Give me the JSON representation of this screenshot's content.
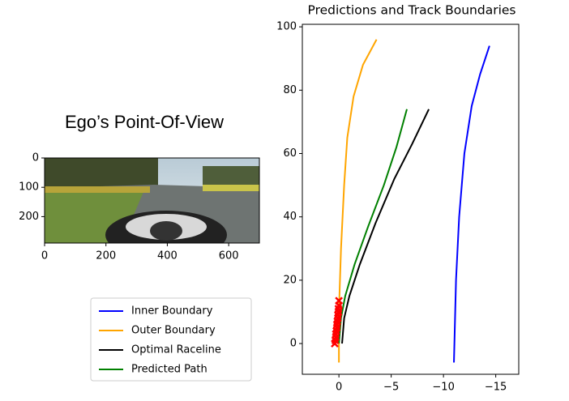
{
  "chart_data": [
    {
      "type": "image",
      "title": "Ego’s Point-Of-View",
      "xlim": [
        0,
        700
      ],
      "ylim": [
        290,
        0
      ],
      "xticks": [
        0,
        200,
        400,
        600
      ],
      "yticks": [
        0,
        100,
        200
      ]
    },
    {
      "type": "line",
      "title": "Predictions and Track Boundaries",
      "xlim": [
        3.5,
        -17.2
      ],
      "ylim": [
        -9.7,
        100.8
      ],
      "xticks": [
        0,
        {
          "value": -5,
          "label": "−5"
        },
        {
          "value": -10,
          "label": "−10"
        },
        {
          "value": -15,
          "label": "−15"
        }
      ],
      "yticks": [
        0,
        20,
        40,
        60,
        80,
        100
      ],
      "legend": "outside left",
      "series": [
        {
          "name": "Inner Boundary",
          "color": "#0000ff",
          "x": [
            -11,
            -11.2,
            -11.5,
            -12,
            -12.7,
            -13.5,
            -14.4
          ],
          "values": [
            -6,
            20,
            40,
            60,
            75,
            85,
            94
          ]
        },
        {
          "name": "Outer Boundary",
          "color": "#ffa500",
          "x": [
            0,
            0,
            -0.2,
            -0.5,
            -0.8,
            -1.4,
            -2.3,
            -3.6
          ],
          "values": [
            -6,
            10,
            30,
            50,
            65,
            78,
            88,
            96
          ]
        },
        {
          "name": "Optimal Raceline",
          "color": "#000000",
          "x": [
            -0.3,
            -0.5,
            -1,
            -2,
            -3.5,
            -5.3,
            -7,
            -8.6
          ],
          "values": [
            0,
            8,
            15,
            25,
            38,
            52,
            63,
            74
          ]
        },
        {
          "name": "Predicted Path",
          "color": "#008000",
          "x": [
            0,
            -0.2,
            -0.6,
            -1.5,
            -2.8,
            -4.3,
            -5.5,
            -6.5
          ],
          "values": [
            0,
            8,
            15,
            25,
            37,
            50,
            62,
            74
          ]
        }
      ],
      "markers": {
        "color": "#ff0000",
        "x": [
          0.4,
          0.35,
          0.3,
          0.3,
          0.25,
          0.2,
          0.2,
          0.15,
          0.1,
          0.1,
          0.05,
          0.05,
          0,
          0
        ],
        "values": [
          0,
          1,
          2,
          3,
          4,
          5,
          6,
          7,
          8,
          9,
          10,
          11,
          12,
          13.5
        ]
      }
    }
  ]
}
